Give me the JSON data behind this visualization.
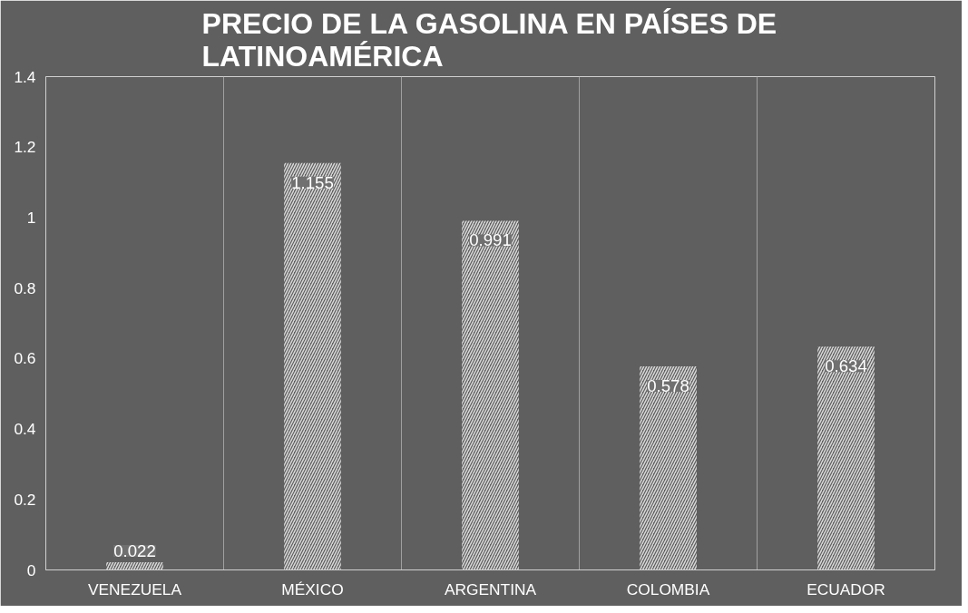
{
  "chart_data": {
    "type": "bar",
    "title": "PRECIO DE LA GASOLINA EN PAÍSES DE LATINOAMÉRICA",
    "categories": [
      "VENEZUELA",
      "MÉXICO",
      "ARGENTINA",
      "COLOMBIA",
      "ECUADOR"
    ],
    "values": [
      0.022,
      1.155,
      0.991,
      0.578,
      0.634
    ],
    "color": "#d9d9d9",
    "ylim": [
      0,
      1.4
    ],
    "yticks": [
      0,
      0.2,
      0.4,
      0.6,
      0.8,
      1,
      1.2,
      1.4
    ],
    "grid": "x",
    "data_labels": true
  }
}
